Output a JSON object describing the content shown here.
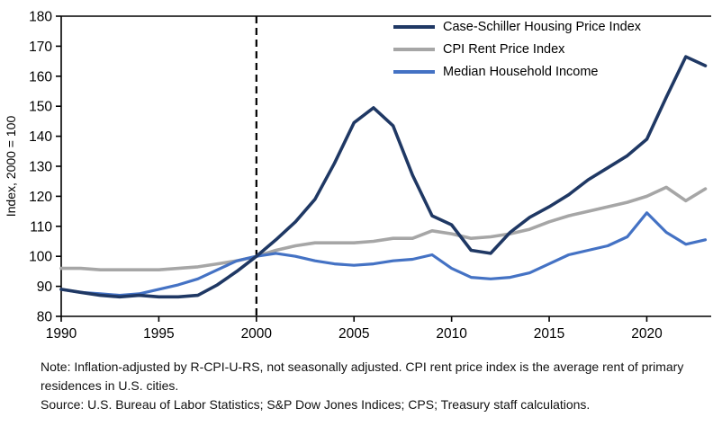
{
  "chart_data": {
    "type": "line",
    "ylabel": "Index, 2000 = 100",
    "ylim": [
      80,
      180
    ],
    "xlim": [
      1990,
      2023.3
    ],
    "yticks": [
      80,
      90,
      100,
      110,
      120,
      130,
      140,
      150,
      160,
      170,
      180
    ],
    "xticks": [
      1990,
      1995,
      2000,
      2005,
      2010,
      2015,
      2020
    ],
    "grid": false,
    "legend_position": "top-right",
    "vline_x": 2000,
    "vline_style": "dashed-black",
    "x": [
      1990,
      1991,
      1992,
      1993,
      1994,
      1995,
      1996,
      1997,
      1998,
      1999,
      2000,
      2001,
      2002,
      2003,
      2004,
      2005,
      2006,
      2007,
      2008,
      2009,
      2010,
      2011,
      2012,
      2013,
      2014,
      2015,
      2016,
      2017,
      2018,
      2019,
      2020,
      2021,
      2022,
      2023
    ],
    "series": [
      {
        "id": "case-schiller",
        "name": "Case-Schiller Housing Price Index",
        "color": "#1f3864",
        "width": 3.6,
        "z": 3,
        "values": [
          89,
          88,
          87,
          86.5,
          87,
          86.5,
          86.5,
          87,
          90.5,
          95,
          100,
          105.5,
          111.5,
          119,
          131,
          144.5,
          149.5,
          143.5,
          127,
          113.5,
          110.5,
          102,
          101,
          108,
          113,
          116.5,
          120.5,
          125.5,
          129.5,
          133.5,
          139,
          153,
          166.5,
          163.5
        ]
      },
      {
        "id": "cpi-rent",
        "name": "CPI Rent Price Index",
        "color": "#a6a6a6",
        "width": 3.6,
        "z": 1,
        "values": [
          96,
          96,
          95.5,
          95.5,
          95.5,
          95.5,
          96,
          96.5,
          97.5,
          98.5,
          100,
          102,
          103.5,
          104.5,
          104.5,
          104.5,
          105,
          106,
          106,
          108.5,
          107.5,
          106,
          106.5,
          107.5,
          109,
          111.5,
          113.5,
          115,
          116.5,
          118,
          120,
          123,
          118.5,
          122.5
        ]
      },
      {
        "id": "median-income",
        "name": "Median Household Income",
        "color": "#4472c4",
        "width": 3.2,
        "z": 2,
        "values": [
          89,
          88,
          87.5,
          87,
          87.5,
          89,
          90.5,
          92.5,
          95.5,
          98.5,
          100,
          101,
          100,
          98.5,
          97.5,
          97,
          97.5,
          98.5,
          99,
          100.5,
          96,
          93,
          92.5,
          93,
          94.5,
          97.5,
          100.5,
          102,
          103.5,
          106.5,
          114.5,
          108,
          104,
          105.5
        ]
      }
    ]
  },
  "notes": {
    "note": "Note: Inflation-adjusted by R-CPI-U-RS, not seasonally adjusted. CPI rent price index is the average rent of primary residences in U.S. cities.",
    "source": "Source: U.S. Bureau of Labor Statistics; S&P Dow Jones Indices; CPS; Treasury staff calculations."
  }
}
